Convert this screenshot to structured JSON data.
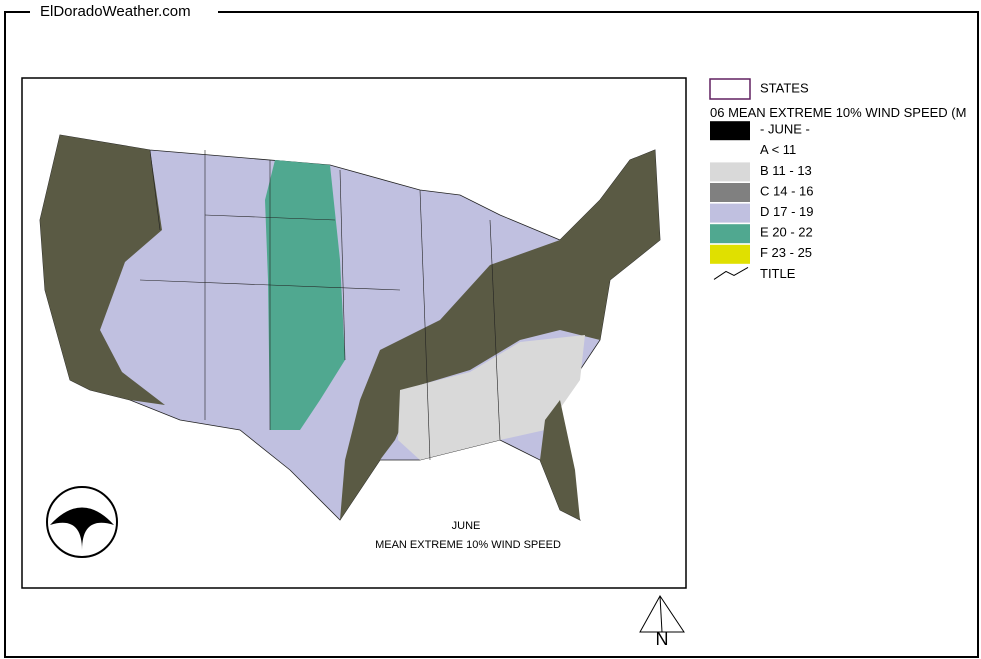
{
  "header": {
    "title": "ElDoradoWeather.com"
  },
  "legend": {
    "items": [
      {
        "label": "STATES"
      },
      {
        "label": "06 MEAN EXTREME 10% WIND SPEED (M"
      },
      {
        "label": "- JUNE -",
        "color": "#000000"
      },
      {
        "label": "A < 11",
        "color": "#ffffff"
      },
      {
        "label": "B 11 - 13",
        "color": "#d9d9d9"
      },
      {
        "label": "C 14 - 16",
        "color": "#808080"
      },
      {
        "label": "D 17 - 19",
        "color": "#c0c0e0"
      },
      {
        "label": "E 20 - 22",
        "color": "#50a890"
      },
      {
        "label": "F 23 - 25",
        "color": "#e0e000"
      },
      {
        "label": "TITLE"
      }
    ]
  },
  "map": {
    "caption": [
      "JUNE",
      "MEAN EXTREME 10% WIND SPEED"
    ],
    "north": "N"
  }
}
